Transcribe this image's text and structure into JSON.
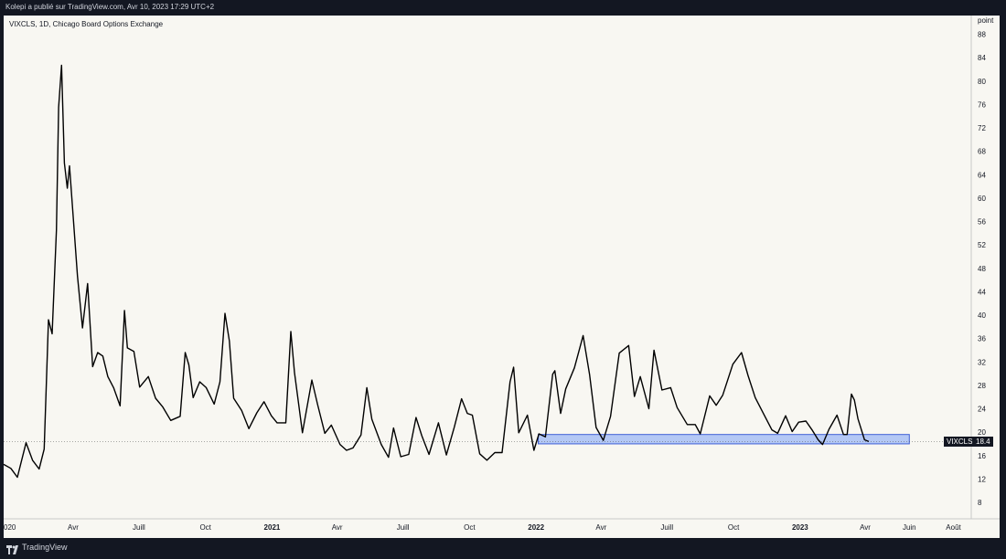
{
  "header": {
    "publish_line": "Kolepi a publié sur TradingView.com, Avr 10, 2023 17:29 UTC+2",
    "symbol_line": "VIXCLS, 1D, Chicago Board Options Exchange"
  },
  "footer": {
    "brand": "TradingView"
  },
  "colors": {
    "background": "#f8f7f2",
    "frame": "#131722",
    "line": "#000000",
    "zone_fill": "#9db8f5",
    "zone_border": "#3d5fd6"
  },
  "chart_data": {
    "type": "line",
    "y_unit_label": "point",
    "ylim": [
      4,
      90
    ],
    "y_ticks": [
      8,
      12,
      16,
      20,
      24,
      28,
      32,
      36,
      40,
      44,
      48,
      52,
      56,
      60,
      64,
      68,
      72,
      76,
      80,
      84,
      88
    ],
    "x_ticks": [
      {
        "label": "020",
        "date": "2020-01-01"
      },
      {
        "label": "Avr",
        "date": "2020-04-01"
      },
      {
        "label": "Juill",
        "date": "2020-07-01"
      },
      {
        "label": "Oct",
        "date": "2020-10-01"
      },
      {
        "label": "2021",
        "date": "2021-01-01",
        "bold": true
      },
      {
        "label": "Avr",
        "date": "2021-04-01"
      },
      {
        "label": "Juill",
        "date": "2021-07-01"
      },
      {
        "label": "Oct",
        "date": "2021-10-01"
      },
      {
        "label": "2022",
        "date": "2022-01-01",
        "bold": true
      },
      {
        "label": "Avr",
        "date": "2022-04-01"
      },
      {
        "label": "Juill",
        "date": "2022-07-01"
      },
      {
        "label": "Oct",
        "date": "2022-10-01"
      },
      {
        "label": "2023",
        "date": "2023-01-01",
        "bold": true
      },
      {
        "label": "Avr",
        "date": "2023-04-01"
      },
      {
        "label": "Juin",
        "date": "2023-06-01"
      },
      {
        "label": "Août",
        "date": "2023-08-01"
      }
    ],
    "x_range": [
      "2019-12-27",
      "2023-09-30"
    ],
    "series": [
      {
        "name": "VIXCLS",
        "points": [
          [
            "2019-12-27",
            14.5
          ],
          [
            "2020-01-06",
            13.8
          ],
          [
            "2020-01-15",
            12.3
          ],
          [
            "2020-01-27",
            18.2
          ],
          [
            "2020-02-05",
            15.2
          ],
          [
            "2020-02-14",
            13.7
          ],
          [
            "2020-02-21",
            17.1
          ],
          [
            "2020-02-27",
            39.2
          ],
          [
            "2020-03-03",
            36.8
          ],
          [
            "2020-03-09",
            54.5
          ],
          [
            "2020-03-12",
            75.5
          ],
          [
            "2020-03-16",
            82.7
          ],
          [
            "2020-03-20",
            66.0
          ],
          [
            "2020-03-24",
            61.7
          ],
          [
            "2020-03-27",
            65.5
          ],
          [
            "2020-04-01",
            57.1
          ],
          [
            "2020-04-07",
            46.7
          ],
          [
            "2020-04-14",
            37.8
          ],
          [
            "2020-04-21",
            45.4
          ],
          [
            "2020-04-28",
            31.2
          ],
          [
            "2020-05-05",
            33.6
          ],
          [
            "2020-05-12",
            33.0
          ],
          [
            "2020-05-19",
            29.5
          ],
          [
            "2020-05-27",
            27.6
          ],
          [
            "2020-06-05",
            24.5
          ],
          [
            "2020-06-11",
            40.8
          ],
          [
            "2020-06-15",
            34.4
          ],
          [
            "2020-06-24",
            33.8
          ],
          [
            "2020-07-02",
            27.7
          ],
          [
            "2020-07-14",
            29.5
          ],
          [
            "2020-07-24",
            25.8
          ],
          [
            "2020-08-03",
            24.3
          ],
          [
            "2020-08-14",
            22.0
          ],
          [
            "2020-08-27",
            22.7
          ],
          [
            "2020-09-03",
            33.6
          ],
          [
            "2020-09-08",
            31.5
          ],
          [
            "2020-09-14",
            25.9
          ],
          [
            "2020-09-23",
            28.6
          ],
          [
            "2020-10-02",
            27.6
          ],
          [
            "2020-10-13",
            24.8
          ],
          [
            "2020-10-21",
            28.6
          ],
          [
            "2020-10-28",
            40.3
          ],
          [
            "2020-11-03",
            35.6
          ],
          [
            "2020-11-09",
            25.8
          ],
          [
            "2020-11-20",
            23.7
          ],
          [
            "2020-11-30",
            20.6
          ],
          [
            "2020-12-11",
            23.3
          ],
          [
            "2020-12-21",
            25.2
          ],
          [
            "2020-12-31",
            22.8
          ],
          [
            "2021-01-08",
            21.6
          ],
          [
            "2021-01-20",
            21.6
          ],
          [
            "2021-01-27",
            37.2
          ],
          [
            "2021-02-01",
            30.2
          ],
          [
            "2021-02-12",
            19.9
          ],
          [
            "2021-02-25",
            28.9
          ],
          [
            "2021-03-05",
            24.7
          ],
          [
            "2021-03-15",
            19.8
          ],
          [
            "2021-03-24",
            21.2
          ],
          [
            "2021-04-05",
            17.9
          ],
          [
            "2021-04-14",
            16.9
          ],
          [
            "2021-04-23",
            17.3
          ],
          [
            "2021-05-04",
            19.5
          ],
          [
            "2021-05-12",
            27.6
          ],
          [
            "2021-05-19",
            22.2
          ],
          [
            "2021-06-01",
            17.9
          ],
          [
            "2021-06-11",
            15.7
          ],
          [
            "2021-06-18",
            20.7
          ],
          [
            "2021-06-28",
            15.8
          ],
          [
            "2021-07-09",
            16.2
          ],
          [
            "2021-07-19",
            22.5
          ],
          [
            "2021-07-27",
            19.4
          ],
          [
            "2021-08-06",
            16.2
          ],
          [
            "2021-08-19",
            21.6
          ],
          [
            "2021-08-30",
            16.1
          ],
          [
            "2021-09-10",
            20.9
          ],
          [
            "2021-09-20",
            25.7
          ],
          [
            "2021-09-28",
            23.2
          ],
          [
            "2021-10-05",
            22.9
          ],
          [
            "2021-10-15",
            16.3
          ],
          [
            "2021-10-25",
            15.2
          ],
          [
            "2021-11-05",
            16.5
          ],
          [
            "2021-11-15",
            16.5
          ],
          [
            "2021-11-26",
            28.6
          ],
          [
            "2021-12-01",
            31.1
          ],
          [
            "2021-12-08",
            19.9
          ],
          [
            "2021-12-20",
            22.9
          ],
          [
            "2021-12-29",
            16.9
          ],
          [
            "2022-01-05",
            19.7
          ],
          [
            "2022-01-14",
            19.2
          ],
          [
            "2022-01-24",
            29.9
          ],
          [
            "2022-01-27",
            30.5
          ],
          [
            "2022-02-04",
            23.2
          ],
          [
            "2022-02-11",
            27.4
          ],
          [
            "2022-02-23",
            31.0
          ],
          [
            "2022-03-07",
            36.5
          ],
          [
            "2022-03-16",
            29.8
          ],
          [
            "2022-03-25",
            20.8
          ],
          [
            "2022-04-04",
            18.6
          ],
          [
            "2022-04-14",
            22.7
          ],
          [
            "2022-04-26",
            33.5
          ],
          [
            "2022-05-09",
            34.8
          ],
          [
            "2022-05-17",
            26.1
          ],
          [
            "2022-05-25",
            29.5
          ],
          [
            "2022-06-06",
            24.0
          ],
          [
            "2022-06-13",
            34.0
          ],
          [
            "2022-06-24",
            27.2
          ],
          [
            "2022-07-06",
            27.6
          ],
          [
            "2022-07-15",
            24.2
          ],
          [
            "2022-07-29",
            21.3
          ],
          [
            "2022-08-09",
            21.3
          ],
          [
            "2022-08-16",
            19.7
          ],
          [
            "2022-08-29",
            26.2
          ],
          [
            "2022-09-07",
            24.6
          ],
          [
            "2022-09-16",
            26.3
          ],
          [
            "2022-09-30",
            31.6
          ],
          [
            "2022-10-12",
            33.6
          ],
          [
            "2022-10-21",
            29.7
          ],
          [
            "2022-10-31",
            25.9
          ],
          [
            "2022-11-10",
            23.5
          ],
          [
            "2022-11-23",
            20.4
          ],
          [
            "2022-12-01",
            19.8
          ],
          [
            "2022-12-12",
            22.8
          ],
          [
            "2022-12-21",
            20.1
          ],
          [
            "2022-12-30",
            21.7
          ],
          [
            "2023-01-09",
            21.9
          ],
          [
            "2023-01-18",
            20.3
          ],
          [
            "2023-01-26",
            18.7
          ],
          [
            "2023-02-01",
            17.9
          ],
          [
            "2023-02-10",
            20.5
          ],
          [
            "2023-02-21",
            22.9
          ],
          [
            "2023-03-02",
            19.6
          ],
          [
            "2023-03-07",
            19.6
          ],
          [
            "2023-03-13",
            26.5
          ],
          [
            "2023-03-17",
            25.5
          ],
          [
            "2023-03-22",
            22.3
          ],
          [
            "2023-03-31",
            18.7
          ],
          [
            "2023-04-06",
            18.4
          ]
        ]
      }
    ],
    "zone": {
      "from": "2022-01-04",
      "to": "2023-06-01",
      "low": 18.0,
      "high": 19.6
    },
    "current_value": {
      "label": "VIXCLS",
      "value": "18.4"
    },
    "grid": false,
    "legend": "none"
  }
}
